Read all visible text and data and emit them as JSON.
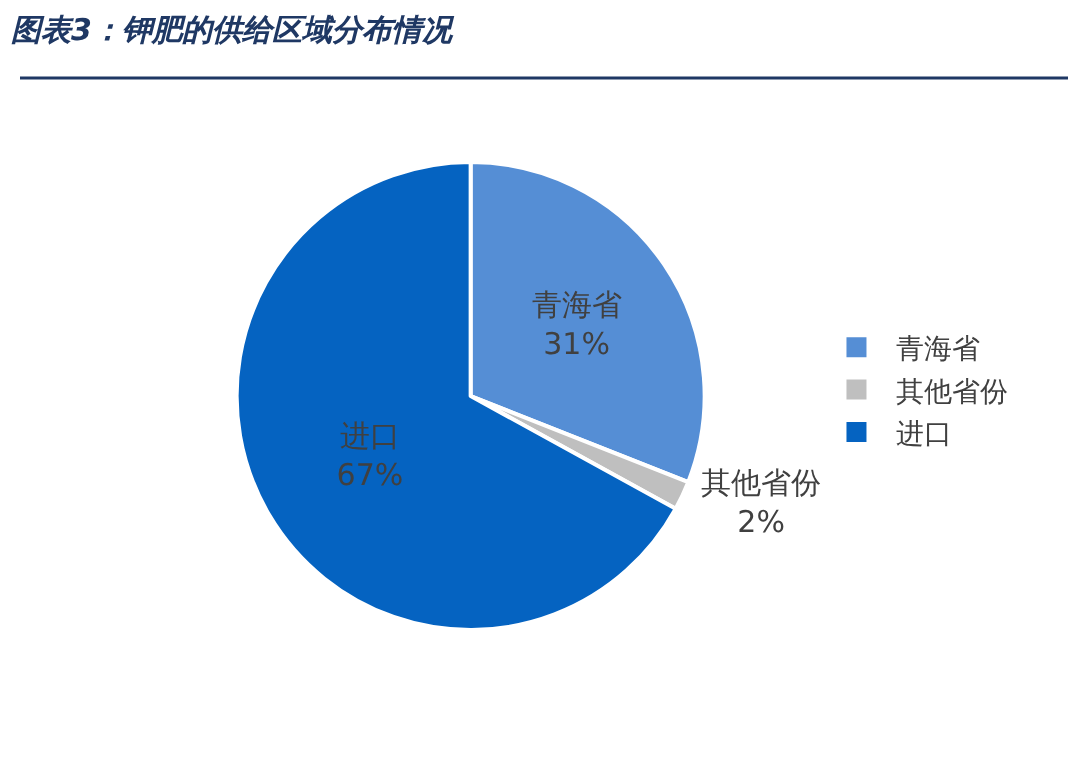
{
  "chart_data": {
    "type": "pie",
    "title": "图表3：钾肥的供给区域分布情况",
    "categories": [
      "青海省",
      "其他省份",
      "进口"
    ],
    "values": [
      31,
      2,
      67
    ],
    "colors": [
      "#558ed5",
      "#bfbfbf",
      "#0563c1"
    ],
    "value_labels": [
      "31%",
      "2%",
      "67%"
    ],
    "legend": "right"
  }
}
